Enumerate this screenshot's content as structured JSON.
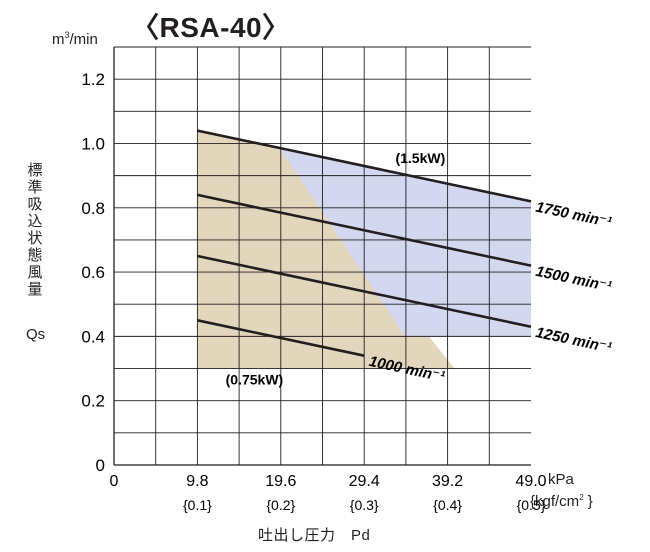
{
  "chart_data": {
    "type": "line",
    "title": "〈RSA-40〉",
    "y_unit_base": "m",
    "y_unit_exp": "3",
    "y_unit_rest": "/min",
    "ylabel": "標\n準\n吸\n込\n状\n態\n風\n量",
    "ylabel_symbol": "Qs",
    "xlabel": "吐出し圧力　Pd",
    "x_unit": "kPa",
    "x_unit2_base": "{kgf/cm",
    "x_unit2_exp": "2",
    "x_unit2_rest": " }",
    "xlim": [
      0,
      49
    ],
    "ylim": [
      0,
      1.3
    ],
    "x_ticks": [
      {
        "value": 0,
        "label": "0",
        "sub": ""
      },
      {
        "value": 9.8,
        "label": "9.8",
        "sub": "{0.1}"
      },
      {
        "value": 19.6,
        "label": "19.6",
        "sub": "{0.2}"
      },
      {
        "value": 29.4,
        "label": "29.4",
        "sub": "{0.3}"
      },
      {
        "value": 39.2,
        "label": "39.2",
        "sub": "{0.4}"
      },
      {
        "value": 49.0,
        "label": "49.0",
        "sub": "{0.5}"
      }
    ],
    "y_ticks": [
      {
        "value": 0,
        "label": "0"
      },
      {
        "value": 0.2,
        "label": "0.2"
      },
      {
        "value": 0.4,
        "label": "0.4"
      },
      {
        "value": 0.6,
        "label": "0.6"
      },
      {
        "value": 0.8,
        "label": "0.8"
      },
      {
        "value": 1.0,
        "label": "1.0"
      },
      {
        "value": 1.2,
        "label": "1.2"
      }
    ],
    "grid": true,
    "regions": [
      {
        "name": "0.75kW",
        "color": "#e2d6bc",
        "points": [
          [
            9.8,
            0.3
          ],
          [
            9.8,
            1.04
          ],
          [
            19.6,
            0.98
          ],
          [
            40.0,
            0.3
          ]
        ]
      },
      {
        "name": "1.5kW",
        "color": "#d3d7f0",
        "points": [
          [
            19.6,
            0.98
          ],
          [
            49.0,
            0.82
          ],
          [
            49.0,
            0.4
          ],
          [
            34.2,
            0.4
          ]
        ]
      }
    ],
    "series": [
      {
        "name": "1750 min⁻¹",
        "x": [
          9.8,
          49.0
        ],
        "y": [
          1.04,
          0.82
        ]
      },
      {
        "name": "1500 min⁻¹",
        "x": [
          9.8,
          49.0
        ],
        "y": [
          0.84,
          0.62
        ]
      },
      {
        "name": "1250 min⁻¹",
        "x": [
          9.8,
          49.0
        ],
        "y": [
          0.65,
          0.43
        ]
      },
      {
        "name": "1000 min⁻¹",
        "x": [
          9.8,
          29.4
        ],
        "y": [
          0.45,
          0.34
        ]
      }
    ],
    "annotations": [
      {
        "text": "(1.5kW)",
        "x": 36.0,
        "y": 0.94
      },
      {
        "text": "(0.75kW)",
        "x": 16.5,
        "y": 0.25
      }
    ]
  }
}
